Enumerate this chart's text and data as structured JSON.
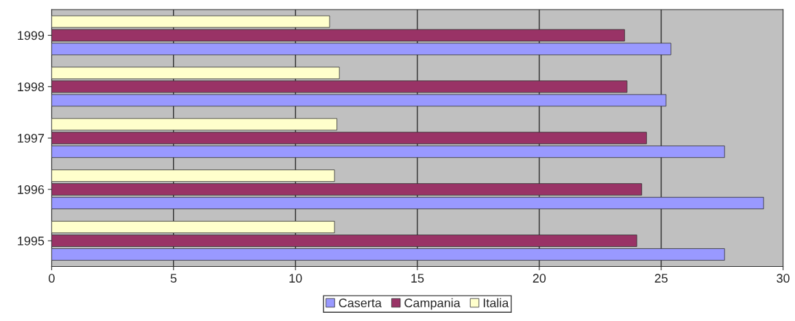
{
  "chart_data": {
    "type": "bar",
    "orientation": "horizontal",
    "categories": [
      "1999",
      "1998",
      "1997",
      "1996",
      "1995"
    ],
    "series": [
      {
        "name": "Caserta",
        "color": "#9999ff",
        "values": [
          25.4,
          25.2,
          27.6,
          29.2,
          27.6
        ]
      },
      {
        "name": "Campania",
        "color": "#993366",
        "values": [
          23.5,
          23.6,
          24.4,
          24.2,
          24.0
        ]
      },
      {
        "name": "Italia",
        "color": "#ffffcc",
        "values": [
          11.4,
          11.8,
          11.7,
          11.6,
          11.6
        ]
      }
    ],
    "xlim": [
      0,
      30
    ],
    "xticks": [
      0,
      5,
      10,
      15,
      20,
      25,
      30
    ],
    "grid": "x",
    "legend": "bottom"
  }
}
